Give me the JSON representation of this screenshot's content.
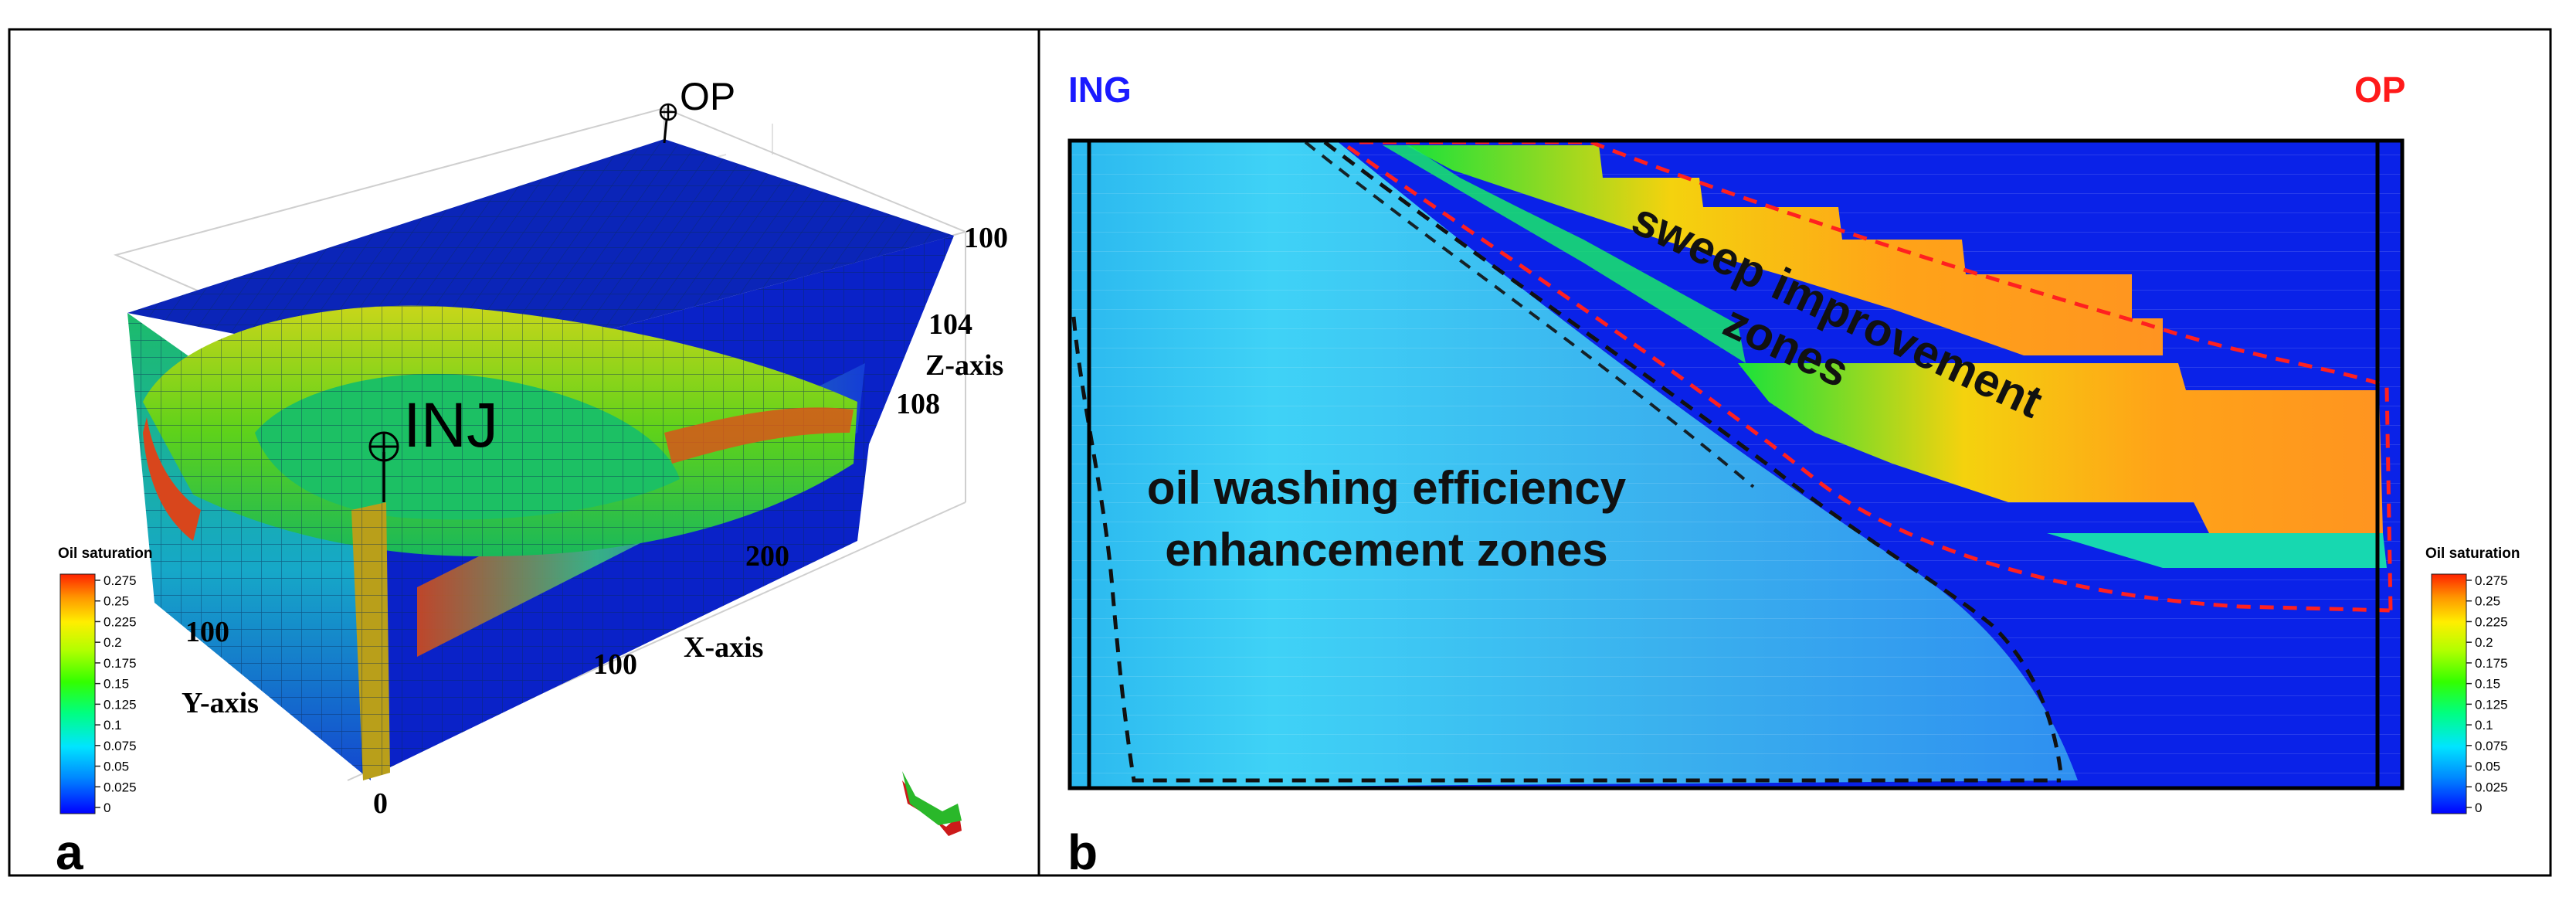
{
  "panel_a": {
    "letter": "a",
    "injector_label": "INJ",
    "producer_label": "OP",
    "z_axis": {
      "label": "Z-axis",
      "ticks": [
        "100",
        "104",
        "108"
      ]
    },
    "x_axis": {
      "label": "X-axis",
      "ticks": [
        "100",
        "200"
      ]
    },
    "y_axis": {
      "label": "Y-axis",
      "ticks": [
        "0",
        "100"
      ]
    },
    "colorbar": {
      "title": "Oil saturation",
      "ticks": [
        "0.275",
        "0.25",
        "0.225",
        "0.2",
        "0.175",
        "0.15",
        "0.125",
        "0.1",
        "0.075",
        "0.05",
        "0.025",
        "0"
      ]
    }
  },
  "panel_b": {
    "letter": "b",
    "injector_label": "ING",
    "producer_label": "OP",
    "sweep_zone_label_line1": "sweep improvement",
    "sweep_zone_label_line2": "zones",
    "washing_zone_label_line1": "oil washing efficiency",
    "washing_zone_label_line2": "enhancement zones",
    "colorbar": {
      "title": "Oil saturation",
      "ticks": [
        "0.275",
        "0.25",
        "0.225",
        "0.2",
        "0.175",
        "0.15",
        "0.125",
        "0.1",
        "0.075",
        "0.05",
        "0.025",
        "0"
      ]
    }
  },
  "colors": {
    "frame": "#000000",
    "background_blue": "#0a22e8",
    "washed_blue": "#35b4f0",
    "injector_label": "#1a1aff",
    "producer_label": "#ff1a1a",
    "zone_outline_red": "#ff2020",
    "zone_outline_black": "#111111"
  }
}
